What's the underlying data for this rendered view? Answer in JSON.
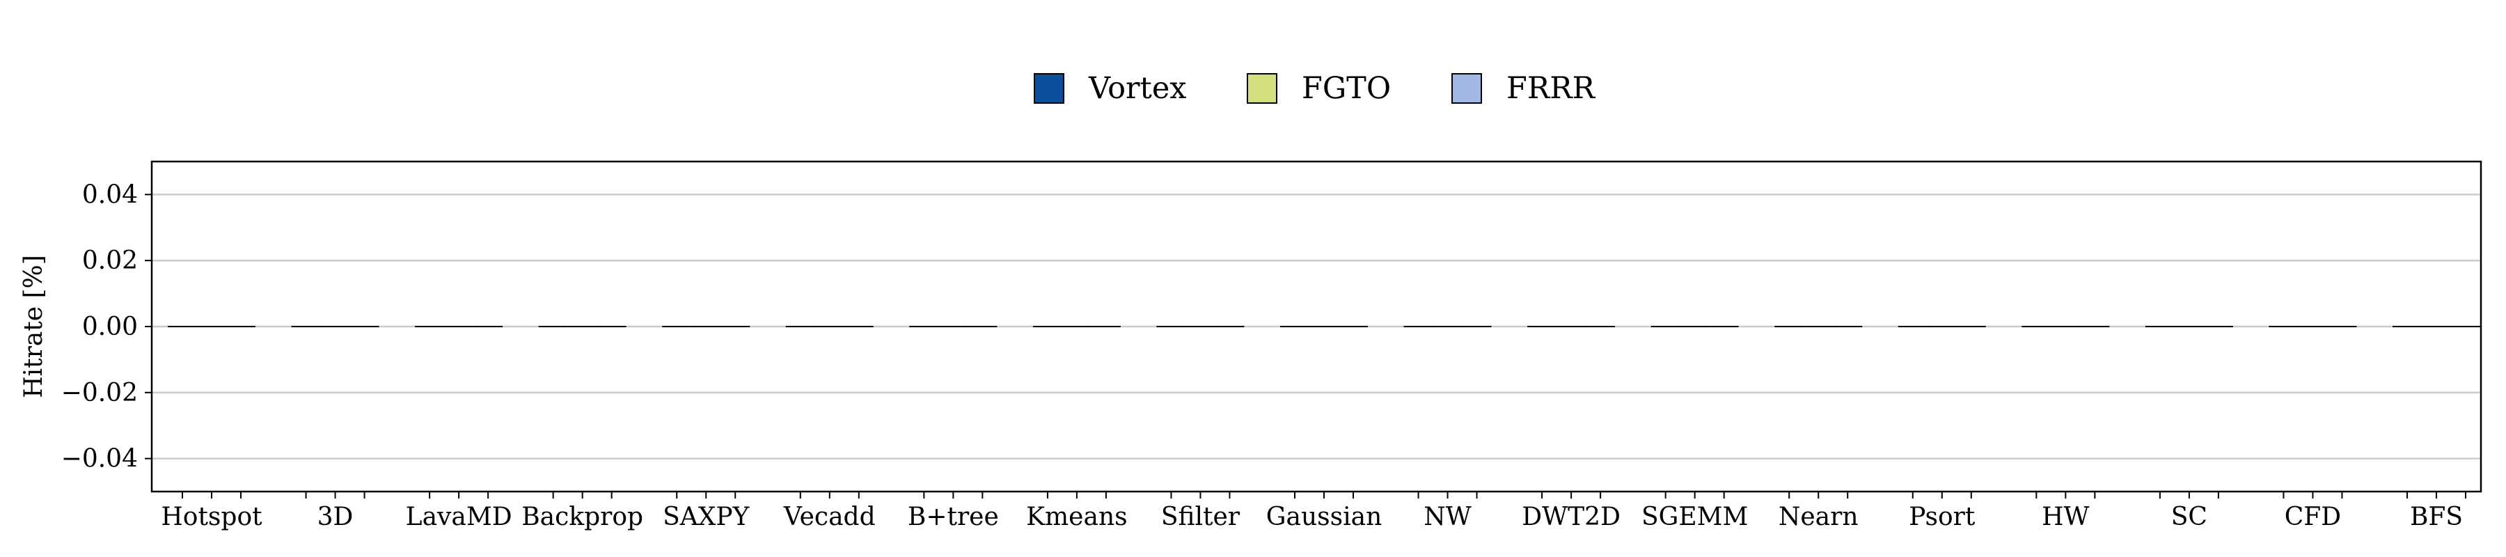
{
  "chart_data": {
    "type": "bar",
    "ylabel": "Hitrate [%]",
    "xlabel": "",
    "ylim": [
      -0.05,
      0.05
    ],
    "yticks": [
      -0.04,
      -0.02,
      0.0,
      0.02,
      0.04
    ],
    "ytick_labels": [
      "−0.04",
      "−0.02",
      "0.00",
      "0.02",
      "0.04"
    ],
    "grid": true,
    "legend_position": "top-center",
    "categories": [
      "Hotspot",
      "3D",
      "LavaMD",
      "Backprop",
      "SAXPY",
      "Vecadd",
      "B+tree",
      "Kmeans",
      "Sfilter",
      "Gaussian",
      "NW",
      "DWT2D",
      "SGEMM",
      "Nearn",
      "Psort",
      "HW",
      "SC",
      "CFD",
      "BFS"
    ],
    "series": [
      {
        "name": "Vortex",
        "color": "#0b4f9c",
        "values": [
          0,
          0,
          0,
          0,
          0,
          0,
          0,
          0,
          0,
          0,
          0,
          0,
          0,
          0,
          0,
          0,
          0,
          0,
          0
        ]
      },
      {
        "name": "FGTO",
        "color": "#d4e07e",
        "values": [
          0,
          0,
          0,
          0,
          0,
          0,
          0,
          0,
          0,
          0,
          0,
          0,
          0,
          0,
          0,
          0,
          0,
          0,
          0
        ]
      },
      {
        "name": "FRRR",
        "color": "#a1b9e2",
        "values": [
          0,
          0,
          0,
          0,
          0,
          0,
          0,
          0,
          0,
          0,
          0,
          0,
          0,
          0,
          0,
          0,
          0,
          0,
          0
        ]
      }
    ]
  }
}
